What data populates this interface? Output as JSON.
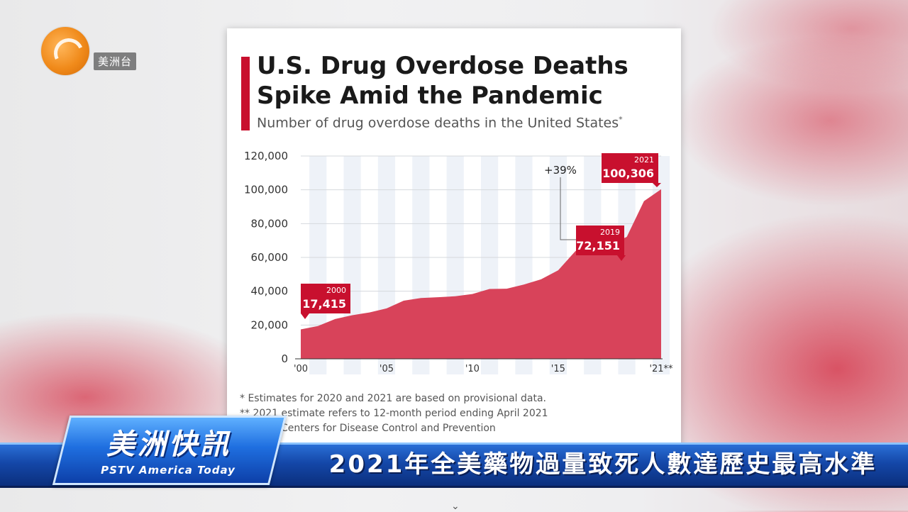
{
  "logo": {
    "text": "美洲台",
    "icon": "phoenix-logo-icon"
  },
  "chart_data": {
    "type": "area",
    "title": "U.S. Drug Overdose Deaths Spike Amid the Pandemic",
    "subtitle": "Number of drug overdose deaths in the United States",
    "subtitle_marker": "*",
    "x": [
      2000,
      2001,
      2002,
      2003,
      2004,
      2005,
      2006,
      2007,
      2008,
      2009,
      2010,
      2011,
      2012,
      2013,
      2014,
      2015,
      2016,
      2017,
      2018,
      2019,
      2020,
      2021
    ],
    "values": [
      17415,
      19394,
      23518,
      25785,
      27424,
      29813,
      34425,
      36010,
      36450,
      37004,
      38329,
      41340,
      41502,
      43982,
      47055,
      52404,
      63632,
      70237,
      67367,
      72151,
      93331,
      100306
    ],
    "ylim": [
      0,
      120000
    ],
    "yticks": [
      0,
      20000,
      40000,
      60000,
      80000,
      100000,
      120000
    ],
    "ytick_labels": [
      "0",
      "20,000",
      "40,000",
      "60,000",
      "80,000",
      "100,000",
      "120,000"
    ],
    "xticks": [
      2000,
      2005,
      2010,
      2015,
      2021
    ],
    "xtick_labels": [
      "'00",
      "'05",
      "'10",
      "'15",
      "'21**"
    ],
    "grid": true,
    "color": "#d8435a",
    "annotations": [
      {
        "x": 2000,
        "year": "2000",
        "value": "17,415"
      },
      {
        "x": 2019,
        "year": "2019",
        "value": "72,151"
      },
      {
        "x": 2021,
        "year": "2021",
        "value": "100,306"
      }
    ],
    "change_label": "+39%",
    "notes": [
      "*   Estimates for 2020 and 2021 are based on provisional data.",
      "** 2021 estimate refers to 12-month period ending April 2021",
      "Centers for Disease Control and Prevention"
    ]
  },
  "lower_third": {
    "program_title": "美洲快訊",
    "program_subtitle": "PSTV America Today",
    "headline": "2021年全美藥物過量致死人數達歷史最高水準"
  },
  "colors": {
    "accent": "#c8102e",
    "band": "#1447a8"
  }
}
